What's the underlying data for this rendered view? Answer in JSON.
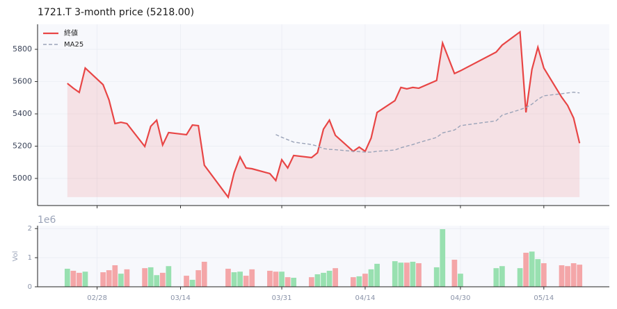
{
  "chart_data": [
    {
      "type": "line",
      "title": "1721.T  3-month price (5218.00)",
      "legend": "upper left",
      "grid": true,
      "x": [
        "02/23",
        "02/24",
        "02/25",
        "02/26",
        "03/01",
        "03/02",
        "03/03",
        "03/04",
        "03/05",
        "03/08",
        "03/09",
        "03/10",
        "03/11",
        "03/12",
        "03/15",
        "03/16",
        "03/17",
        "03/18",
        "03/22",
        "03/23",
        "03/24",
        "03/25",
        "03/26",
        "03/29",
        "03/30",
        "03/31",
        "04/01",
        "04/02",
        "04/05",
        "04/06",
        "04/07",
        "04/08",
        "04/09",
        "04/12",
        "04/13",
        "04/14",
        "04/15",
        "04/16",
        "04/19",
        "04/20",
        "04/21",
        "04/22",
        "04/23",
        "04/26",
        "04/27",
        "04/29",
        "04/30",
        "05/06",
        "05/07",
        "05/10",
        "05/11",
        "05/12",
        "05/13",
        "05/14",
        "05/17",
        "05/18",
        "05/19",
        "05/20"
      ],
      "xlim": [
        "02/18",
        "05/25"
      ],
      "xticks": [
        "02/28",
        "03/14",
        "03/31",
        "04/14",
        "04/30",
        "05/14"
      ],
      "ylim": [
        4832,
        5955
      ],
      "yticks": [
        5000,
        5200,
        5400,
        5600,
        5800
      ],
      "series": [
        {
          "name": "終値",
          "color": "#e84545",
          "fill": true,
          "values": [
            5589,
            5559,
            5533,
            5684,
            5581,
            5486,
            5340,
            5348,
            5340,
            5198,
            5323,
            5361,
            5207,
            5284,
            5271,
            5331,
            5327,
            5082,
            4884,
            5035,
            5133,
            5065,
            5060,
            5030,
            4987,
            5116,
            5065,
            5142,
            5129,
            5159,
            5305,
            5361,
            5267,
            5168,
            5194,
            5168,
            5250,
            5409,
            5482,
            5564,
            5555,
            5564,
            5559,
            5607,
            5839,
            5650,
            5667,
            5783,
            5826,
            5908,
            5409,
            5675,
            5813,
            5684,
            5503,
            5452,
            5374,
            5218
          ]
        },
        {
          "name": "MA25",
          "color": "#9aa3b8",
          "dashed": true,
          "values": [
            null,
            null,
            null,
            null,
            null,
            null,
            null,
            null,
            null,
            null,
            null,
            null,
            null,
            null,
            null,
            null,
            null,
            null,
            null,
            null,
            null,
            null,
            null,
            null,
            5272,
            5255,
            5240,
            5225,
            5210,
            5200,
            5185,
            5180,
            5178,
            5168,
            5166,
            5163,
            5163,
            5168,
            5176,
            5190,
            5200,
            5210,
            5222,
            5254,
            5282,
            5300,
            5327,
            5357,
            5392,
            5426,
            5440,
            5460,
            5490,
            5512,
            5525,
            5530,
            5534,
            5530
          ]
        }
      ]
    },
    {
      "type": "bar",
      "ylabel": "Vol",
      "offset_label": "1e6",
      "grid": true,
      "x": [
        "02/23",
        "02/24",
        "02/25",
        "02/26",
        "03/01",
        "03/02",
        "03/03",
        "03/04",
        "03/05",
        "03/08",
        "03/09",
        "03/10",
        "03/11",
        "03/12",
        "03/15",
        "03/16",
        "03/17",
        "03/18",
        "03/22",
        "03/23",
        "03/24",
        "03/25",
        "03/26",
        "03/29",
        "03/30",
        "03/31",
        "04/01",
        "04/02",
        "04/05",
        "04/06",
        "04/07",
        "04/08",
        "04/09",
        "04/12",
        "04/13",
        "04/14",
        "04/15",
        "04/16",
        "04/19",
        "04/20",
        "04/21",
        "04/22",
        "04/23",
        "04/26",
        "04/27",
        "04/29",
        "04/30",
        "05/06",
        "05/07",
        "05/10",
        "05/11",
        "05/12",
        "05/13",
        "05/14",
        "05/17",
        "05/18",
        "05/19",
        "05/20"
      ],
      "xlim": [
        "02/18",
        "05/25"
      ],
      "xticks": [
        "02/28",
        "03/14",
        "03/31",
        "04/14",
        "04/30",
        "05/14"
      ],
      "ylim": [
        0,
        2100000
      ],
      "yticks": [
        0,
        {
          "value": 1000000,
          "label": "1"
        },
        {
          "value": 2000000,
          "label": "2"
        }
      ],
      "values": [
        620000,
        550000,
        480000,
        520000,
        500000,
        570000,
        740000,
        450000,
        600000,
        640000,
        670000,
        400000,
        480000,
        710000,
        380000,
        240000,
        570000,
        860000,
        620000,
        500000,
        520000,
        380000,
        600000,
        550000,
        520000,
        520000,
        330000,
        310000,
        330000,
        430000,
        480000,
        550000,
        640000,
        330000,
        360000,
        450000,
        600000,
        790000,
        880000,
        830000,
        830000,
        860000,
        810000,
        670000,
        1980000,
        930000,
        450000,
        640000,
        710000,
        640000,
        1170000,
        1210000,
        950000,
        810000,
        740000,
        710000,
        810000,
        760000
      ],
      "colors": [
        "#98e0b0",
        "#f4a6a8",
        "#f4a6a8",
        "#98e0b0",
        "#f4a6a8",
        "#f4a6a8",
        "#f4a6a8",
        "#98e0b0",
        "#f4a6a8",
        "#f4a6a8",
        "#98e0b0",
        "#98e0b0",
        "#f4a6a8",
        "#98e0b0",
        "#f4a6a8",
        "#98e0b0",
        "#f4a6a8",
        "#f4a6a8",
        "#f4a6a8",
        "#98e0b0",
        "#98e0b0",
        "#f4a6a8",
        "#f4a6a8",
        "#f4a6a8",
        "#f4a6a8",
        "#98e0b0",
        "#f4a6a8",
        "#98e0b0",
        "#f4a6a8",
        "#98e0b0",
        "#98e0b0",
        "#98e0b0",
        "#f4a6a8",
        "#f4a6a8",
        "#98e0b0",
        "#f4a6a8",
        "#98e0b0",
        "#98e0b0",
        "#98e0b0",
        "#98e0b0",
        "#f4a6a8",
        "#98e0b0",
        "#f4a6a8",
        "#98e0b0",
        "#98e0b0",
        "#f4a6a8",
        "#98e0b0",
        "#98e0b0",
        "#98e0b0",
        "#98e0b0",
        "#f4a6a8",
        "#98e0b0",
        "#98e0b0",
        "#f4a6a8",
        "#f4a6a8",
        "#f4a6a8",
        "#f4a6a8",
        "#f4a6a8"
      ]
    }
  ]
}
